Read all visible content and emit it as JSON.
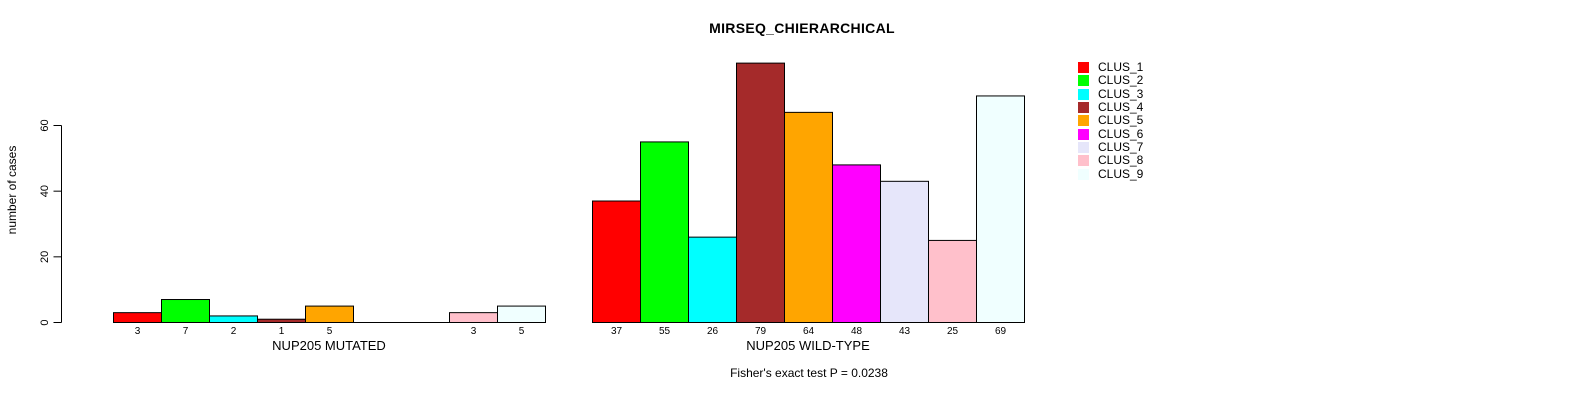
{
  "title": "MIRSEQ_CHIERARCHICAL",
  "chart_data": {
    "type": "bar",
    "title": "MIRSEQ_CHIERARCHICAL",
    "ylabel": "number of cases",
    "yticks": [
      0,
      20,
      40,
      60
    ],
    "ylim": [
      0,
      79
    ],
    "grid": false,
    "legend_position": "right",
    "series": [
      {
        "name": "CLUS_1",
        "color": "#FF0000"
      },
      {
        "name": "CLUS_2",
        "color": "#00FF00"
      },
      {
        "name": "CLUS_3",
        "color": "#00FFFF"
      },
      {
        "name": "CLUS_4",
        "color": "#A52A2A"
      },
      {
        "name": "CLUS_5",
        "color": "#FFA500"
      },
      {
        "name": "CLUS_6",
        "color": "#FF00FF"
      },
      {
        "name": "CLUS_7",
        "color": "#E6E6FA"
      },
      {
        "name": "CLUS_8",
        "color": "#FFC0CB"
      },
      {
        "name": "CLUS_9",
        "color": "#F0FFFF"
      }
    ],
    "groups": [
      {
        "label": "NUP205 MUTATED",
        "values": [
          3,
          7,
          2,
          1,
          5,
          0,
          0,
          3,
          5
        ]
      },
      {
        "label": "NUP205 WILD-TYPE",
        "values": [
          37,
          55,
          26,
          79,
          64,
          48,
          43,
          25,
          69
        ]
      }
    ],
    "bar_value_labels_shown_when": "value > 0",
    "footnote": "Fisher's exact test P = 0.0238",
    "axis_color": "#000000",
    "bar_border_color": "#000000"
  }
}
